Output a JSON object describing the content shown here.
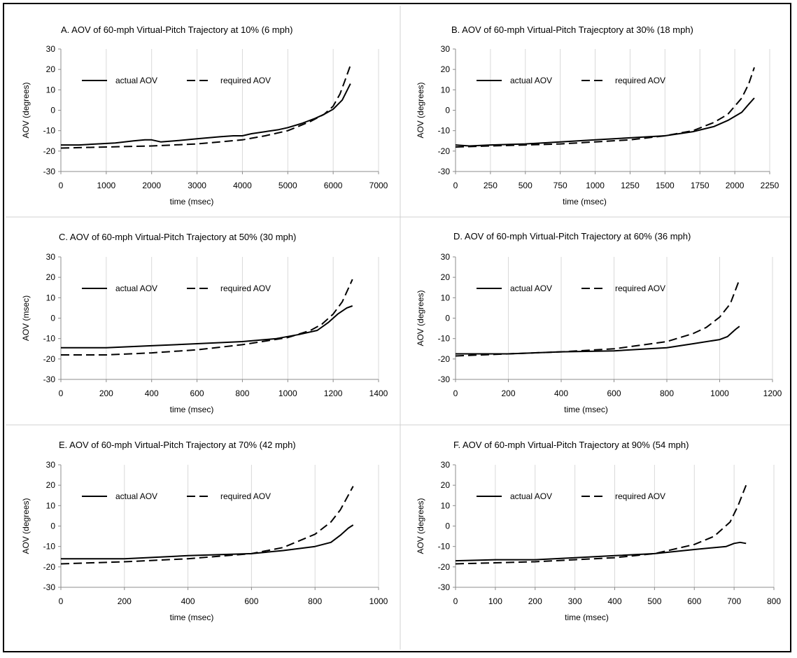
{
  "chart_data": [
    {
      "type": "line",
      "title": "A.  AOV of 60-mph Virtual-Pitch Trajectory at 10% (6 mph)",
      "xlabel": "time (msec)",
      "ylabel": "AOV (degrees)",
      "xlim": [
        0,
        7000
      ],
      "ylim": [
        -30,
        30
      ],
      "xticks": [
        0,
        1000,
        2000,
        3000,
        4000,
        5000,
        6000,
        7000
      ],
      "yticks": [
        -30,
        -20,
        -10,
        0,
        10,
        20,
        30
      ],
      "grid": "vertical",
      "legend": "top-left",
      "series": [
        {
          "name": "actual AOV",
          "style": "solid",
          "x": [
            0,
            400,
            800,
            1200,
            1600,
            1850,
            2000,
            2200,
            2500,
            3000,
            3500,
            3800,
            4000,
            4200,
            4500,
            4800,
            5000,
            5300,
            5600,
            5800,
            6000,
            6200,
            6380
          ],
          "y": [
            -17,
            -17,
            -16.5,
            -16,
            -15,
            -14.5,
            -14.5,
            -15.5,
            -15,
            -14,
            -13,
            -12.5,
            -12.5,
            -11.5,
            -10.5,
            -9.5,
            -8.5,
            -6.5,
            -4,
            -2,
            0.5,
            5,
            13
          ]
        },
        {
          "name": "required AOV",
          "style": "dashed",
          "x": [
            0,
            1000,
            2000,
            3000,
            3500,
            4000,
            4500,
            5000,
            5500,
            5800,
            6000,
            6150,
            6250,
            6380
          ],
          "y": [
            -18.5,
            -18,
            -17.5,
            -16.5,
            -15.5,
            -14.5,
            -12.5,
            -10,
            -5.5,
            -2,
            2,
            8,
            14,
            22
          ]
        }
      ]
    },
    {
      "type": "line",
      "title": "B.  AOV of 60-mph Virtual-Pitch Trajecptory at 30% (18 mph)",
      "xlabel": "time (msec)",
      "ylabel": "AOV (degrees)",
      "xlim": [
        0,
        2250
      ],
      "ylim": [
        -30,
        30
      ],
      "xticks": [
        0,
        250,
        500,
        750,
        1000,
        1250,
        1500,
        1750,
        2000,
        2250
      ],
      "yticks": [
        -30,
        -20,
        -10,
        0,
        10,
        20,
        30
      ],
      "grid": "vertical",
      "legend": "top-left",
      "series": [
        {
          "name": "actual AOV",
          "style": "solid",
          "x": [
            0,
            100,
            250,
            500,
            750,
            1000,
            1250,
            1500,
            1700,
            1850,
            1950,
            2000,
            2050,
            2100,
            2140
          ],
          "y": [
            -17,
            -17.5,
            -17,
            -16.5,
            -15.5,
            -14.5,
            -13.5,
            -12.5,
            -10.5,
            -8,
            -5,
            -3,
            -1,
            3,
            6
          ]
        },
        {
          "name": "required AOV",
          "style": "dashed",
          "x": [
            0,
            250,
            500,
            750,
            1000,
            1250,
            1500,
            1700,
            1850,
            1950,
            2050,
            2100,
            2140
          ],
          "y": [
            -18,
            -17.5,
            -17,
            -16.5,
            -15.5,
            -14.5,
            -12.5,
            -10,
            -6,
            -2,
            6,
            13,
            21
          ]
        }
      ]
    },
    {
      "type": "line",
      "title": "C.  AOV of 60-mph Virtual-Pitch Trajectory at 50% (30 mph)",
      "xlabel": "time (msec)",
      "ylabel": "AOV (msec)",
      "xlim": [
        0,
        1400
      ],
      "ylim": [
        -30,
        30
      ],
      "xticks": [
        0,
        200,
        400,
        600,
        800,
        1000,
        1200,
        1400
      ],
      "yticks": [
        -30,
        -20,
        -10,
        0,
        10,
        20,
        30
      ],
      "grid": "vertical",
      "legend": "top-left",
      "series": [
        {
          "name": "actual AOV",
          "style": "solid",
          "x": [
            0,
            200,
            400,
            600,
            800,
            950,
            1050,
            1130,
            1180,
            1220,
            1260,
            1285
          ],
          "y": [
            -14.5,
            -14.5,
            -13.5,
            -12.5,
            -11.5,
            -10,
            -8,
            -6,
            -2,
            2,
            5,
            6
          ]
        },
        {
          "name": "required AOV",
          "style": "dashed",
          "x": [
            0,
            200,
            400,
            600,
            800,
            1000,
            1100,
            1150,
            1200,
            1240,
            1285
          ],
          "y": [
            -18,
            -18,
            -17,
            -15.5,
            -13,
            -9.5,
            -6,
            -3,
            2,
            8,
            19
          ]
        }
      ]
    },
    {
      "type": "line",
      "title": "D.  AOV of 60-mph Virtual-Pitch Trajectory at 60% (36 mph)",
      "xlabel": "time (msec)",
      "ylabel": "AOV (degrees)",
      "xlim": [
        0,
        1200
      ],
      "ylim": [
        -30,
        30
      ],
      "xticks": [
        0,
        200,
        400,
        600,
        800,
        1000,
        1200
      ],
      "yticks": [
        -30,
        -20,
        -10,
        0,
        10,
        20,
        30
      ],
      "grid": "vertical",
      "legend": "top-left",
      "series": [
        {
          "name": "actual AOV",
          "style": "solid",
          "x": [
            0,
            200,
            400,
            600,
            800,
            900,
            1000,
            1030,
            1060,
            1075
          ],
          "y": [
            -17.5,
            -17.5,
            -16.5,
            -16,
            -14.5,
            -12.5,
            -10.5,
            -9,
            -5.5,
            -4
          ]
        },
        {
          "name": "required AOV",
          "style": "dashed",
          "x": [
            0,
            200,
            400,
            600,
            800,
            900,
            950,
            1000,
            1040,
            1075
          ],
          "y": [
            -18.5,
            -17.5,
            -16.5,
            -15,
            -11.5,
            -7.5,
            -4.5,
            0.5,
            7,
            19
          ]
        }
      ]
    },
    {
      "type": "line",
      "title": "E.  AOV of 60-mph Virtual-Pitch Trajectory at 70% (42 mph)",
      "xlabel": "time (msec)",
      "ylabel": "AOV (degrees)",
      "xlim": [
        0,
        1000
      ],
      "ylim": [
        -30,
        30
      ],
      "xticks": [
        0,
        200,
        400,
        600,
        800,
        1000
      ],
      "yticks": [
        -30,
        -20,
        -10,
        0,
        10,
        20,
        30
      ],
      "grid": "vertical",
      "legend": "top-left",
      "series": [
        {
          "name": "actual AOV",
          "style": "solid",
          "x": [
            0,
            200,
            400,
            600,
            700,
            800,
            850,
            880,
            905,
            920
          ],
          "y": [
            -16,
            -16,
            -14.5,
            -13.5,
            -12,
            -10,
            -8,
            -4.5,
            -1,
            0.5
          ]
        },
        {
          "name": "required AOV",
          "style": "dashed",
          "x": [
            0,
            200,
            400,
            600,
            700,
            800,
            850,
            880,
            920
          ],
          "y": [
            -18.5,
            -17.5,
            -16,
            -13.5,
            -10.5,
            -4,
            2,
            8,
            19.5
          ]
        }
      ]
    },
    {
      "type": "line",
      "title": "F.  AOV of 60-mph Virtual-Pitch Trajectory at 90% (54 mph)",
      "xlabel": "time (msec)",
      "ylabel": "AOV (degrees)",
      "xlim": [
        0,
        800
      ],
      "ylim": [
        -30,
        30
      ],
      "xticks": [
        0,
        100,
        200,
        300,
        400,
        500,
        600,
        700,
        800
      ],
      "yticks": [
        -30,
        -20,
        -10,
        0,
        10,
        20,
        30
      ],
      "grid": "vertical",
      "legend": "top-left",
      "series": [
        {
          "name": "actual AOV",
          "style": "solid",
          "x": [
            0,
            100,
            200,
            300,
            400,
            500,
            600,
            680,
            700,
            715,
            730
          ],
          "y": [
            -17,
            -16.5,
            -16.5,
            -15.5,
            -14.5,
            -13.5,
            -11.5,
            -10,
            -8.5,
            -8,
            -8.5
          ]
        },
        {
          "name": "required AOV",
          "style": "dashed",
          "x": [
            0,
            100,
            200,
            300,
            400,
            500,
            600,
            650,
            690,
            710,
            730
          ],
          "y": [
            -18.5,
            -18,
            -17.5,
            -16.5,
            -15.5,
            -13.5,
            -9,
            -5,
            2,
            10,
            20
          ]
        }
      ]
    }
  ]
}
